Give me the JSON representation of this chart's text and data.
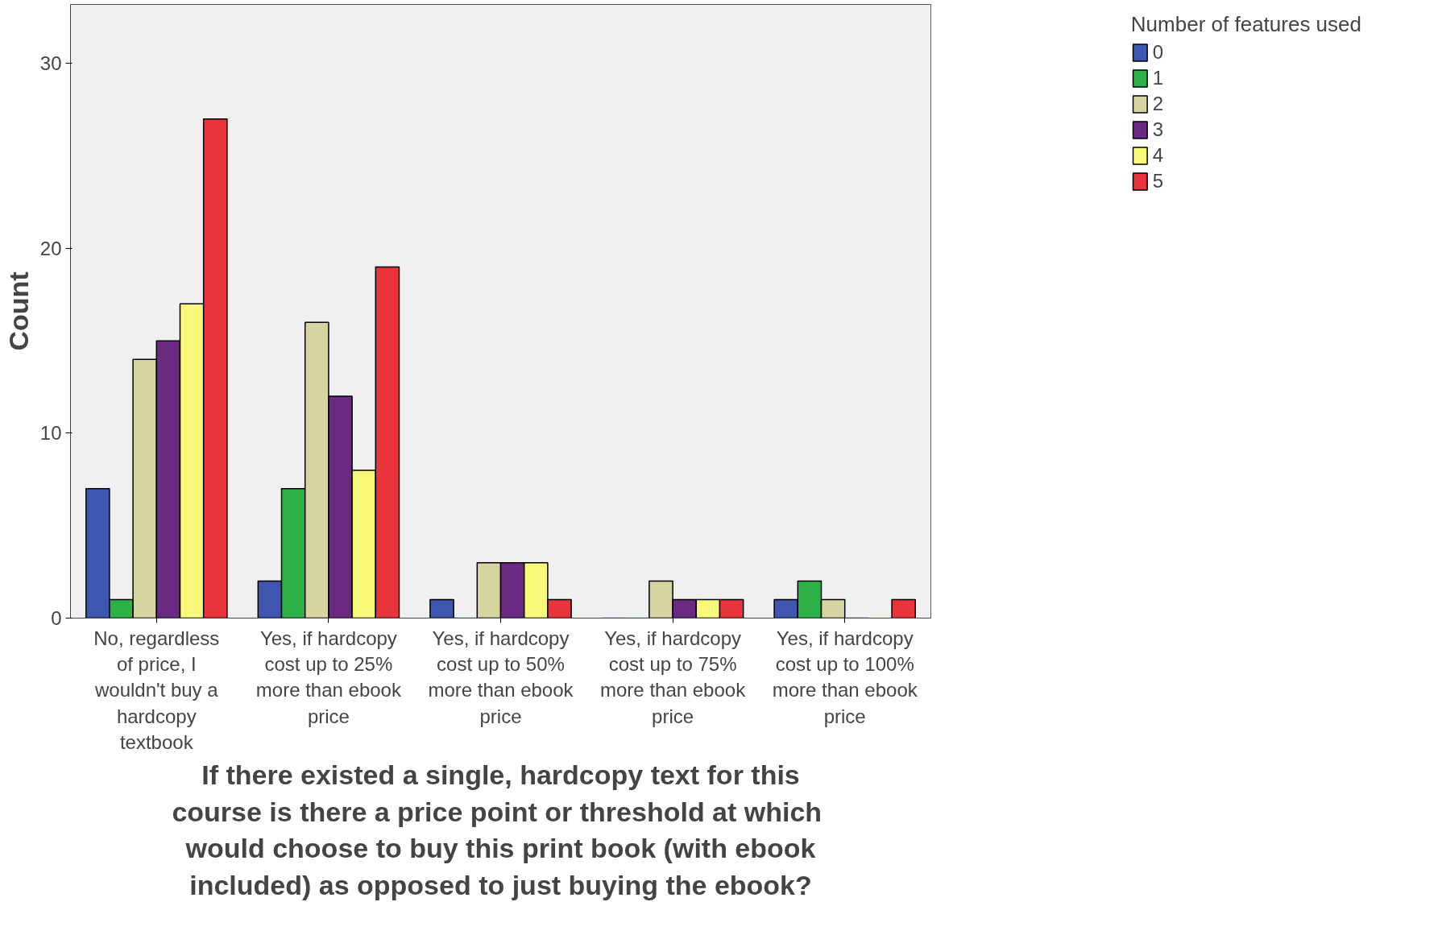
{
  "chart_data": {
    "type": "bar",
    "ylabel": "Count",
    "xlabel": "If there existed a single, hardcopy text for this course  is there a price point or threshold at which would choose to buy this print book (with ebook included) as opposed to just buying the ebook?",
    "legend_title": "Number of features used",
    "legend": "right",
    "categories": [
      "No, regardless of price, I wouldn't buy a hardcopy textbook",
      "Yes, if hardcopy cost up to 25% more than ebook price",
      "Yes, if hardcopy cost up to 50% more than ebook price",
      "Yes, if hardcopy cost up to 75% more than ebook price",
      "Yes, if hardcopy cost up to 100% more than ebook price"
    ],
    "ylim": [
      0,
      33.2
    ],
    "yticks": [
      0,
      10,
      20,
      30
    ],
    "grid": false,
    "series": [
      {
        "name": "0",
        "color": "#3d56b0",
        "values": [
          7,
          2,
          1,
          0,
          1
        ]
      },
      {
        "name": "1",
        "color": "#2db24a",
        "values": [
          1,
          7,
          0,
          0,
          2
        ]
      },
      {
        "name": "2",
        "color": "#d6d4a0",
        "values": [
          14,
          16,
          3,
          2,
          1
        ]
      },
      {
        "name": "3",
        "color": "#6a2a82",
        "values": [
          15,
          12,
          3,
          1,
          0
        ]
      },
      {
        "name": "4",
        "color": "#f8f87a",
        "values": [
          17,
          8,
          3,
          1,
          0
        ]
      },
      {
        "name": "5",
        "color": "#e8343a",
        "values": [
          27,
          19,
          1,
          1,
          1
        ]
      }
    ]
  }
}
